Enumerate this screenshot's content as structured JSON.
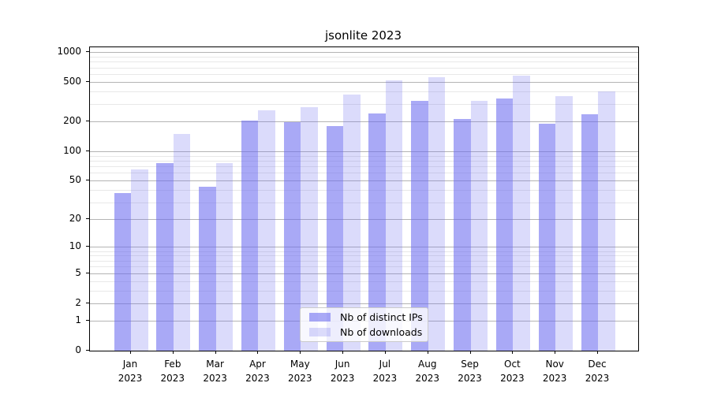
{
  "chart_data": {
    "type": "bar",
    "title": "jsonlite 2023",
    "categories": [
      "Jan",
      "Feb",
      "Mar",
      "Apr",
      "May",
      "Jun",
      "Jul",
      "Aug",
      "Sep",
      "Oct",
      "Nov",
      "Dec"
    ],
    "category_year": "2023",
    "series": [
      {
        "name": "Nb of distinct IPs",
        "color": "rgba(103,103,240,0.57)",
        "values": [
          37,
          75,
          43,
          204,
          197,
          180,
          242,
          321,
          210,
          342,
          191,
          238
        ]
      },
      {
        "name": "Nb of downloads",
        "color": "rgba(103,103,240,0.24)",
        "values": [
          65,
          150,
          75,
          260,
          277,
          375,
          519,
          557,
          321,
          576,
          359,
          401
        ]
      }
    ],
    "yscale": "log10(1+v)",
    "ylim": [
      0,
      1116
    ],
    "yticks_major": [
      0,
      1,
      2,
      5,
      10,
      20,
      50,
      100,
      200,
      500,
      1000
    ],
    "yticks_minor": [
      3,
      4,
      6,
      7,
      8,
      9,
      30,
      40,
      60,
      70,
      80,
      90,
      300,
      400,
      600,
      700,
      800,
      900
    ],
    "grid": true,
    "grid_major_color": "#b4b4b4",
    "grid_minor_color": "#e8e8e8",
    "legend_position": "lower center",
    "xlabel": "",
    "ylabel": ""
  }
}
